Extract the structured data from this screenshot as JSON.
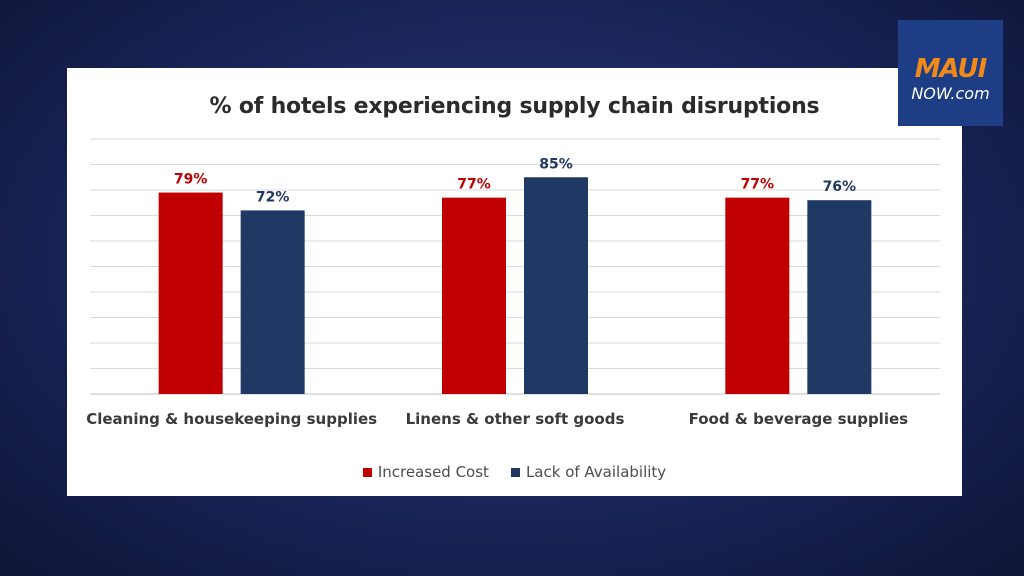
{
  "logo": {
    "maui": "MAUI",
    "now": "NOW.com"
  },
  "colors": {
    "increased_cost": "#c00000",
    "lack_of_availability": "#1f3864",
    "grid": "#d9d9d9"
  },
  "chart_data": {
    "type": "bar",
    "title": "% of hotels experiencing supply chain disruptions",
    "categories": [
      "Cleaning & housekeeping supplies",
      "Linens & other soft goods",
      "Food & beverage supplies"
    ],
    "series": [
      {
        "name": "Increased Cost",
        "values": [
          79,
          77,
          77
        ],
        "labels": [
          "79%",
          "77%",
          "77%"
        ]
      },
      {
        "name": "Lack of Availability",
        "values": [
          72,
          85,
          76
        ],
        "labels": [
          "72%",
          "85%",
          "76%"
        ]
      }
    ],
    "ylim": [
      0,
      100
    ],
    "grid": true,
    "legend": "bottom"
  }
}
